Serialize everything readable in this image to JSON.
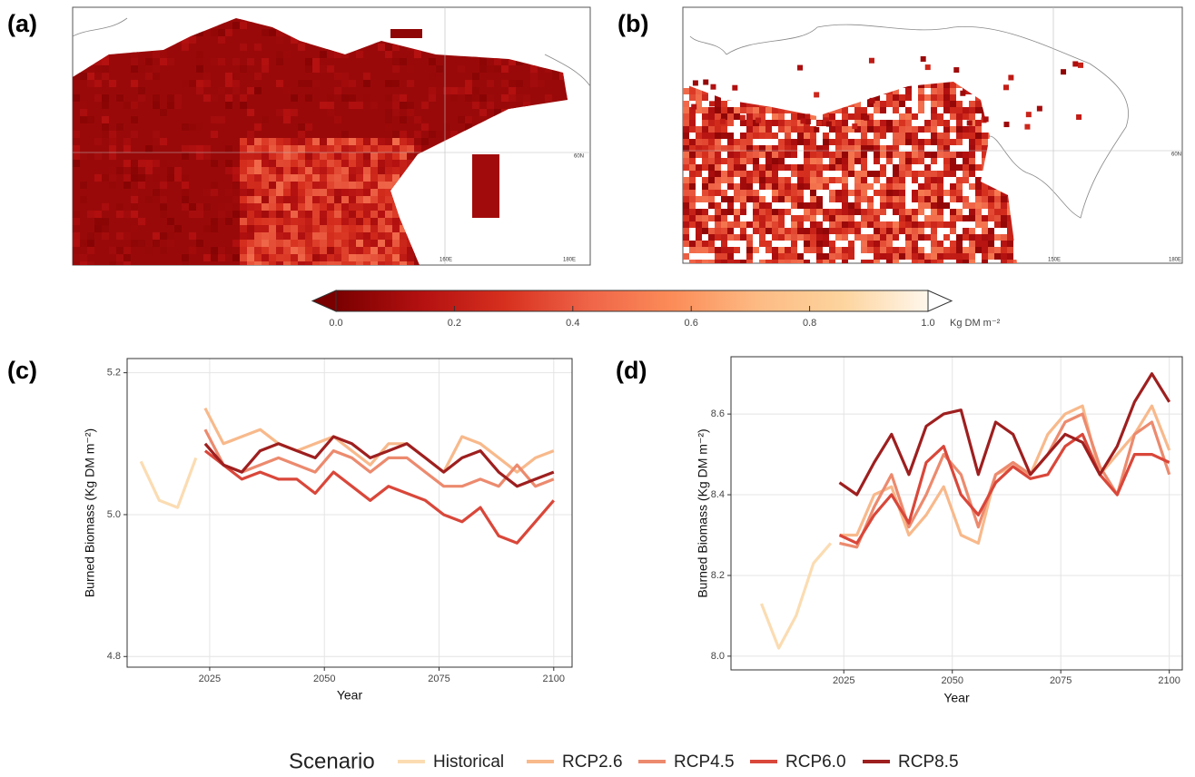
{
  "maps": [
    {
      "label": "(a)",
      "coord_labels": [
        "60N",
        "160E",
        "180E"
      ]
    },
    {
      "label": "(b)",
      "coord_labels": [
        "60N",
        "150E",
        "180E"
      ]
    }
  ],
  "colorbar": {
    "lim": [
      0,
      1
    ],
    "ticks": [
      {
        "value": 0,
        "label": "0.0"
      },
      0.2,
      0.4,
      0.6,
      0.8,
      {
        "value": 1,
        "label": "1.0"
      }
    ],
    "unit": "Kg DM m⁻²",
    "colors": [
      "#7a0000",
      "#b31010",
      "#d7301f",
      "#ef6548",
      "#fc8d59",
      "#fdbb84",
      "#fdd49e",
      "#fff7ec"
    ]
  },
  "legend": {
    "title": "Scenario",
    "position": "bottom"
  },
  "chart_data": [
    {
      "type": "line",
      "label": "(c)",
      "x_label": "Year",
      "y_label": "Burned Biomass (Kg DM m⁻²)",
      "x": [
        2010,
        2014,
        2018,
        2022,
        2024,
        2028,
        2032,
        2036,
        2040,
        2044,
        2048,
        2052,
        2056,
        2060,
        2064,
        2068,
        2072,
        2076,
        2080,
        2084,
        2088,
        2092,
        2096,
        2100
      ],
      "xlim": [
        2007,
        2104
      ],
      "xticks": [
        2025,
        2050,
        2075,
        2100
      ],
      "ylim": [
        4.785,
        5.22
      ],
      "yticks": [
        4.8,
        {
          "value": 5.0,
          "label": "5.0"
        },
        5.2
      ],
      "grid": true,
      "series": [
        {
          "name": "Historical",
          "color": "#fbdcb2",
          "values": [
            5.075,
            5.02,
            5.01,
            5.08,
            null,
            null,
            null,
            null,
            null,
            null,
            null,
            null,
            null,
            null,
            null,
            null,
            null,
            null,
            null,
            null,
            null,
            null,
            null,
            null
          ]
        },
        {
          "name": "RCP2.6",
          "color": "#f8b98b",
          "values": [
            null,
            null,
            null,
            null,
            5.15,
            5.1,
            5.11,
            5.12,
            5.1,
            5.09,
            5.1,
            5.11,
            5.09,
            5.07,
            5.1,
            5.1,
            5.08,
            5.06,
            5.11,
            5.1,
            5.08,
            5.06,
            5.08,
            5.09
          ]
        },
        {
          "name": "RCP4.5",
          "color": "#ec8a6e",
          "values": [
            null,
            null,
            null,
            null,
            5.12,
            5.07,
            5.06,
            5.07,
            5.08,
            5.07,
            5.06,
            5.09,
            5.08,
            5.06,
            5.08,
            5.08,
            5.06,
            5.04,
            5.04,
            5.05,
            5.04,
            5.07,
            5.04,
            5.05
          ]
        },
        {
          "name": "RCP6.0",
          "color": "#d9473a",
          "values": [
            null,
            null,
            null,
            null,
            5.09,
            5.07,
            5.05,
            5.06,
            5.05,
            5.05,
            5.03,
            5.06,
            5.04,
            5.02,
            5.04,
            5.03,
            5.02,
            5.0,
            4.99,
            5.01,
            4.97,
            4.96,
            4.99,
            5.02
          ]
        },
        {
          "name": "RCP8.5",
          "color": "#9e1f1f",
          "values": [
            null,
            null,
            null,
            null,
            5.1,
            5.07,
            5.06,
            5.09,
            5.1,
            5.09,
            5.08,
            5.11,
            5.1,
            5.08,
            5.09,
            5.1,
            5.08,
            5.06,
            5.08,
            5.09,
            5.06,
            5.04,
            5.05,
            5.06
          ]
        }
      ]
    },
    {
      "type": "line",
      "label": "(d)",
      "x_label": "Year",
      "y_label": "Burned Biomass (Kg DM m⁻²)",
      "x": [
        2006,
        2010,
        2014,
        2018,
        2022,
        2024,
        2028,
        2032,
        2036,
        2040,
        2044,
        2048,
        2052,
        2056,
        2060,
        2064,
        2068,
        2072,
        2076,
        2080,
        2084,
        2088,
        2092,
        2096,
        2100
      ],
      "xlim": [
        1999,
        2103
      ],
      "xticks": [
        2025,
        2050,
        2075,
        2100
      ],
      "ylim": [
        7.966,
        8.742
      ],
      "yticks": [
        {
          "value": 8.0,
          "label": "8.0"
        },
        8.2,
        8.4,
        8.6
      ],
      "grid": true,
      "series": [
        {
          "name": "Historical",
          "color": "#fbdcb2",
          "values": [
            8.13,
            8.02,
            8.1,
            8.23,
            8.28,
            null,
            null,
            null,
            null,
            null,
            null,
            null,
            null,
            null,
            null,
            null,
            null,
            null,
            null,
            null,
            null,
            null,
            null,
            null,
            null
          ]
        },
        {
          "name": "RCP2.6",
          "color": "#f8b98b",
          "values": [
            null,
            null,
            null,
            null,
            null,
            8.3,
            8.3,
            8.4,
            8.42,
            8.3,
            8.35,
            8.42,
            8.3,
            8.28,
            8.45,
            8.47,
            8.45,
            8.55,
            8.6,
            8.62,
            8.45,
            8.5,
            8.55,
            8.62,
            8.51
          ]
        },
        {
          "name": "RCP4.5",
          "color": "#ec8a6e",
          "values": [
            null,
            null,
            null,
            null,
            null,
            8.28,
            8.27,
            8.37,
            8.45,
            8.32,
            8.4,
            8.5,
            8.45,
            8.32,
            8.45,
            8.48,
            8.45,
            8.5,
            8.58,
            8.6,
            8.47,
            8.4,
            8.55,
            8.58,
            8.45
          ]
        },
        {
          "name": "RCP6.0",
          "color": "#d9473a",
          "values": [
            null,
            null,
            null,
            null,
            null,
            8.3,
            8.28,
            8.35,
            8.4,
            8.33,
            8.48,
            8.52,
            8.4,
            8.35,
            8.43,
            8.47,
            8.44,
            8.45,
            8.52,
            8.55,
            8.45,
            8.4,
            8.5,
            8.5,
            8.48
          ]
        },
        {
          "name": "RCP8.5",
          "color": "#9e1f1f",
          "values": [
            null,
            null,
            null,
            null,
            null,
            8.43,
            8.4,
            8.48,
            8.55,
            8.45,
            8.57,
            8.6,
            8.61,
            8.45,
            8.58,
            8.55,
            8.45,
            8.5,
            8.55,
            8.53,
            8.45,
            8.52,
            8.63,
            8.7,
            8.63
          ]
        }
      ]
    }
  ]
}
